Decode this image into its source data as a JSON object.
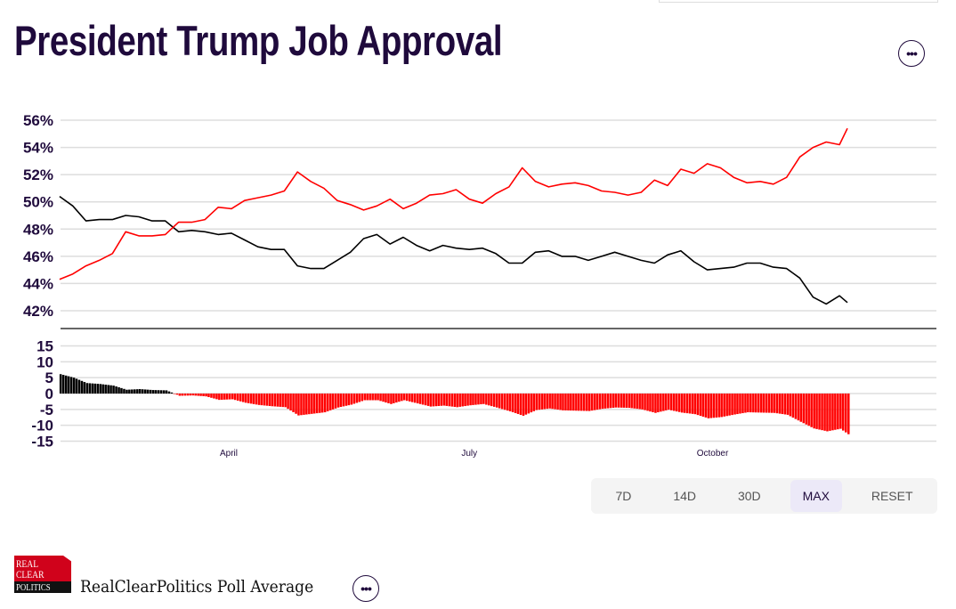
{
  "header": {
    "title": "President Trump Job Approval",
    "more_label": "•••"
  },
  "ranges": {
    "buttons": [
      "7D",
      "14D",
      "30D",
      "MAX",
      "RESET"
    ],
    "active": "MAX"
  },
  "footer": {
    "logo_lines": [
      "REAL",
      "CLEAR",
      "POLITICS"
    ],
    "source": "RealClearPolitics Poll Average",
    "more_label": "•••"
  },
  "colors": {
    "approve": "#000000",
    "disapprove": "#ff0000",
    "text": "#1f0a3c",
    "grid": "#dddddd"
  },
  "chart_data": {
    "type": "line",
    "grid": true,
    "x_ticks": [
      {
        "date": "2025-04-01",
        "label": "April"
      },
      {
        "date": "2025-07-01",
        "label": "July"
      },
      {
        "date": "2025-10-01",
        "label": "October"
      }
    ],
    "x_range": [
      "2025-01-27",
      "2025-12-31"
    ],
    "top_panel": {
      "ylim": [
        42,
        56
      ],
      "y_ticks": [
        56,
        54,
        52,
        50,
        48,
        46,
        44,
        42
      ],
      "y_tick_suffix": "%"
    },
    "bottom_panel": {
      "type": "bar",
      "value": "approve minus disapprove",
      "ylim": [
        -15,
        15
      ],
      "y_ticks": [
        15,
        10,
        5,
        0,
        -5,
        -10,
        -15
      ]
    },
    "x": [
      "2025-01-27",
      "2025-02-01",
      "2025-02-06",
      "2025-02-11",
      "2025-02-16",
      "2025-02-21",
      "2025-02-26",
      "2025-03-03",
      "2025-03-08",
      "2025-03-13",
      "2025-03-18",
      "2025-03-23",
      "2025-03-28",
      "2025-04-02",
      "2025-04-07",
      "2025-04-12",
      "2025-04-17",
      "2025-04-22",
      "2025-04-27",
      "2025-05-02",
      "2025-05-07",
      "2025-05-12",
      "2025-05-17",
      "2025-05-22",
      "2025-05-27",
      "2025-06-01",
      "2025-06-06",
      "2025-06-11",
      "2025-06-16",
      "2025-06-21",
      "2025-06-26",
      "2025-07-01",
      "2025-07-06",
      "2025-07-11",
      "2025-07-16",
      "2025-07-21",
      "2025-07-26",
      "2025-07-31",
      "2025-08-05",
      "2025-08-10",
      "2025-08-15",
      "2025-08-20",
      "2025-08-25",
      "2025-08-30",
      "2025-09-04",
      "2025-09-09",
      "2025-09-14",
      "2025-09-19",
      "2025-09-24",
      "2025-09-29",
      "2025-10-04",
      "2025-10-09",
      "2025-10-14",
      "2025-10-19",
      "2025-10-24",
      "2025-10-29",
      "2025-11-03",
      "2025-11-08",
      "2025-11-13",
      "2025-11-18",
      "2025-11-21"
    ],
    "series": [
      {
        "key": "approve",
        "color": "#000000",
        "values": [
          50.4,
          49.7,
          48.6,
          48.7,
          48.7,
          49.0,
          48.9,
          48.6,
          48.6,
          47.8,
          47.9,
          47.8,
          47.6,
          47.7,
          47.2,
          46.7,
          46.5,
          46.5,
          45.3,
          45.1,
          45.1,
          45.7,
          46.3,
          47.3,
          47.6,
          46.9,
          47.4,
          46.8,
          46.4,
          46.8,
          46.6,
          46.5,
          46.6,
          46.2,
          45.5,
          45.5,
          46.3,
          46.4,
          46.0,
          46.0,
          45.7,
          46.0,
          46.3,
          46.0,
          45.7,
          45.5,
          46.1,
          46.4,
          45.6,
          45.0,
          45.1,
          45.2,
          45.5,
          45.5,
          45.2,
          45.1,
          44.4,
          43.0,
          42.5,
          43.1,
          42.6
        ]
      },
      {
        "key": "disapprove",
        "color": "#ff0000",
        "values": [
          44.3,
          44.7,
          45.3,
          45.7,
          46.2,
          47.8,
          47.5,
          47.5,
          47.6,
          48.5,
          48.5,
          48.7,
          49.6,
          49.5,
          50.1,
          50.3,
          50.5,
          50.8,
          52.2,
          51.5,
          51.0,
          50.1,
          49.8,
          49.4,
          49.7,
          50.2,
          49.5,
          49.9,
          50.5,
          50.6,
          50.9,
          50.2,
          49.9,
          50.6,
          51.1,
          52.5,
          51.5,
          51.1,
          51.3,
          51.4,
          51.2,
          50.8,
          50.7,
          50.5,
          50.7,
          51.6,
          51.2,
          52.4,
          52.1,
          52.8,
          52.5,
          51.8,
          51.4,
          51.5,
          51.3,
          51.8,
          53.3,
          54.0,
          54.4,
          54.2,
          55.4
        ]
      }
    ]
  }
}
